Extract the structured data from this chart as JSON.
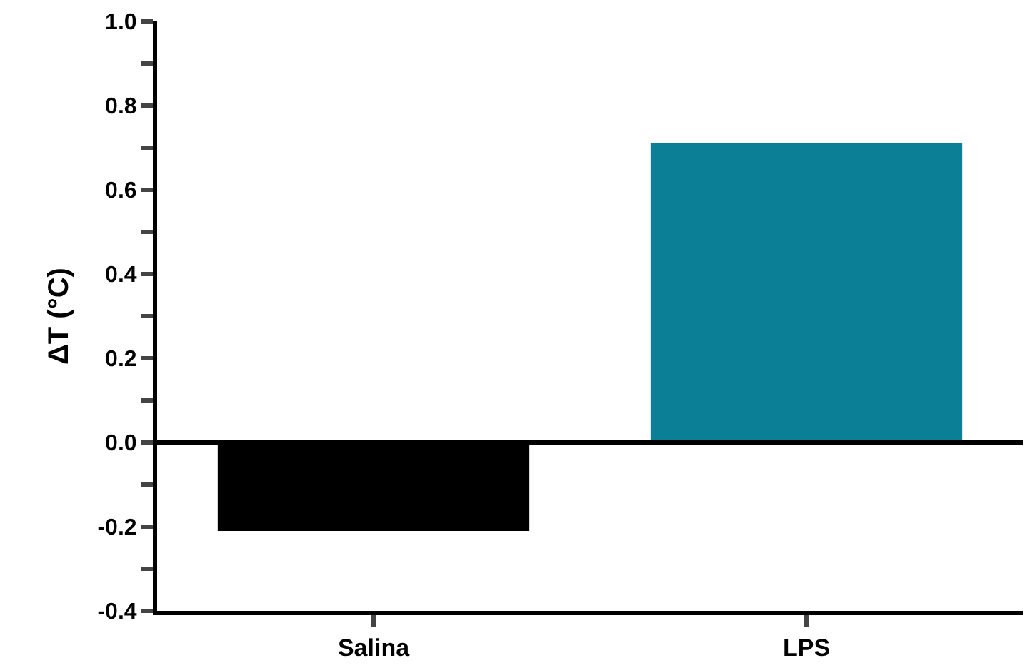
{
  "chart_data": {
    "type": "bar",
    "ylabel": "ΔT (°C)",
    "categories": [
      "Salina",
      "LPS"
    ],
    "values": [
      -0.21,
      0.71
    ],
    "colors": [
      "#000000",
      "#0a7f96"
    ],
    "ylim": [
      -0.4,
      1.0
    ],
    "yticks": [
      {
        "value": -0.4,
        "label": "-0.4"
      },
      {
        "value": -0.3,
        "label": null
      },
      {
        "value": -0.2,
        "label": "-0.2"
      },
      {
        "value": -0.1,
        "label": null
      },
      {
        "value": 0.0,
        "label": "0.0"
      },
      {
        "value": 0.1,
        "label": null
      },
      {
        "value": 0.2,
        "label": "0.2"
      },
      {
        "value": 0.3,
        "label": null
      },
      {
        "value": 0.4,
        "label": "0.4"
      },
      {
        "value": 0.5,
        "label": null
      },
      {
        "value": 0.6,
        "label": "0.6"
      },
      {
        "value": 0.7,
        "label": null
      },
      {
        "value": 0.8,
        "label": "0.8"
      },
      {
        "value": 0.9,
        "label": null
      },
      {
        "value": 1.0,
        "label": "1.0"
      }
    ],
    "ref_lines": [
      {
        "axis": "y",
        "value": 0.0,
        "label": null,
        "color": "#000000"
      }
    ]
  }
}
